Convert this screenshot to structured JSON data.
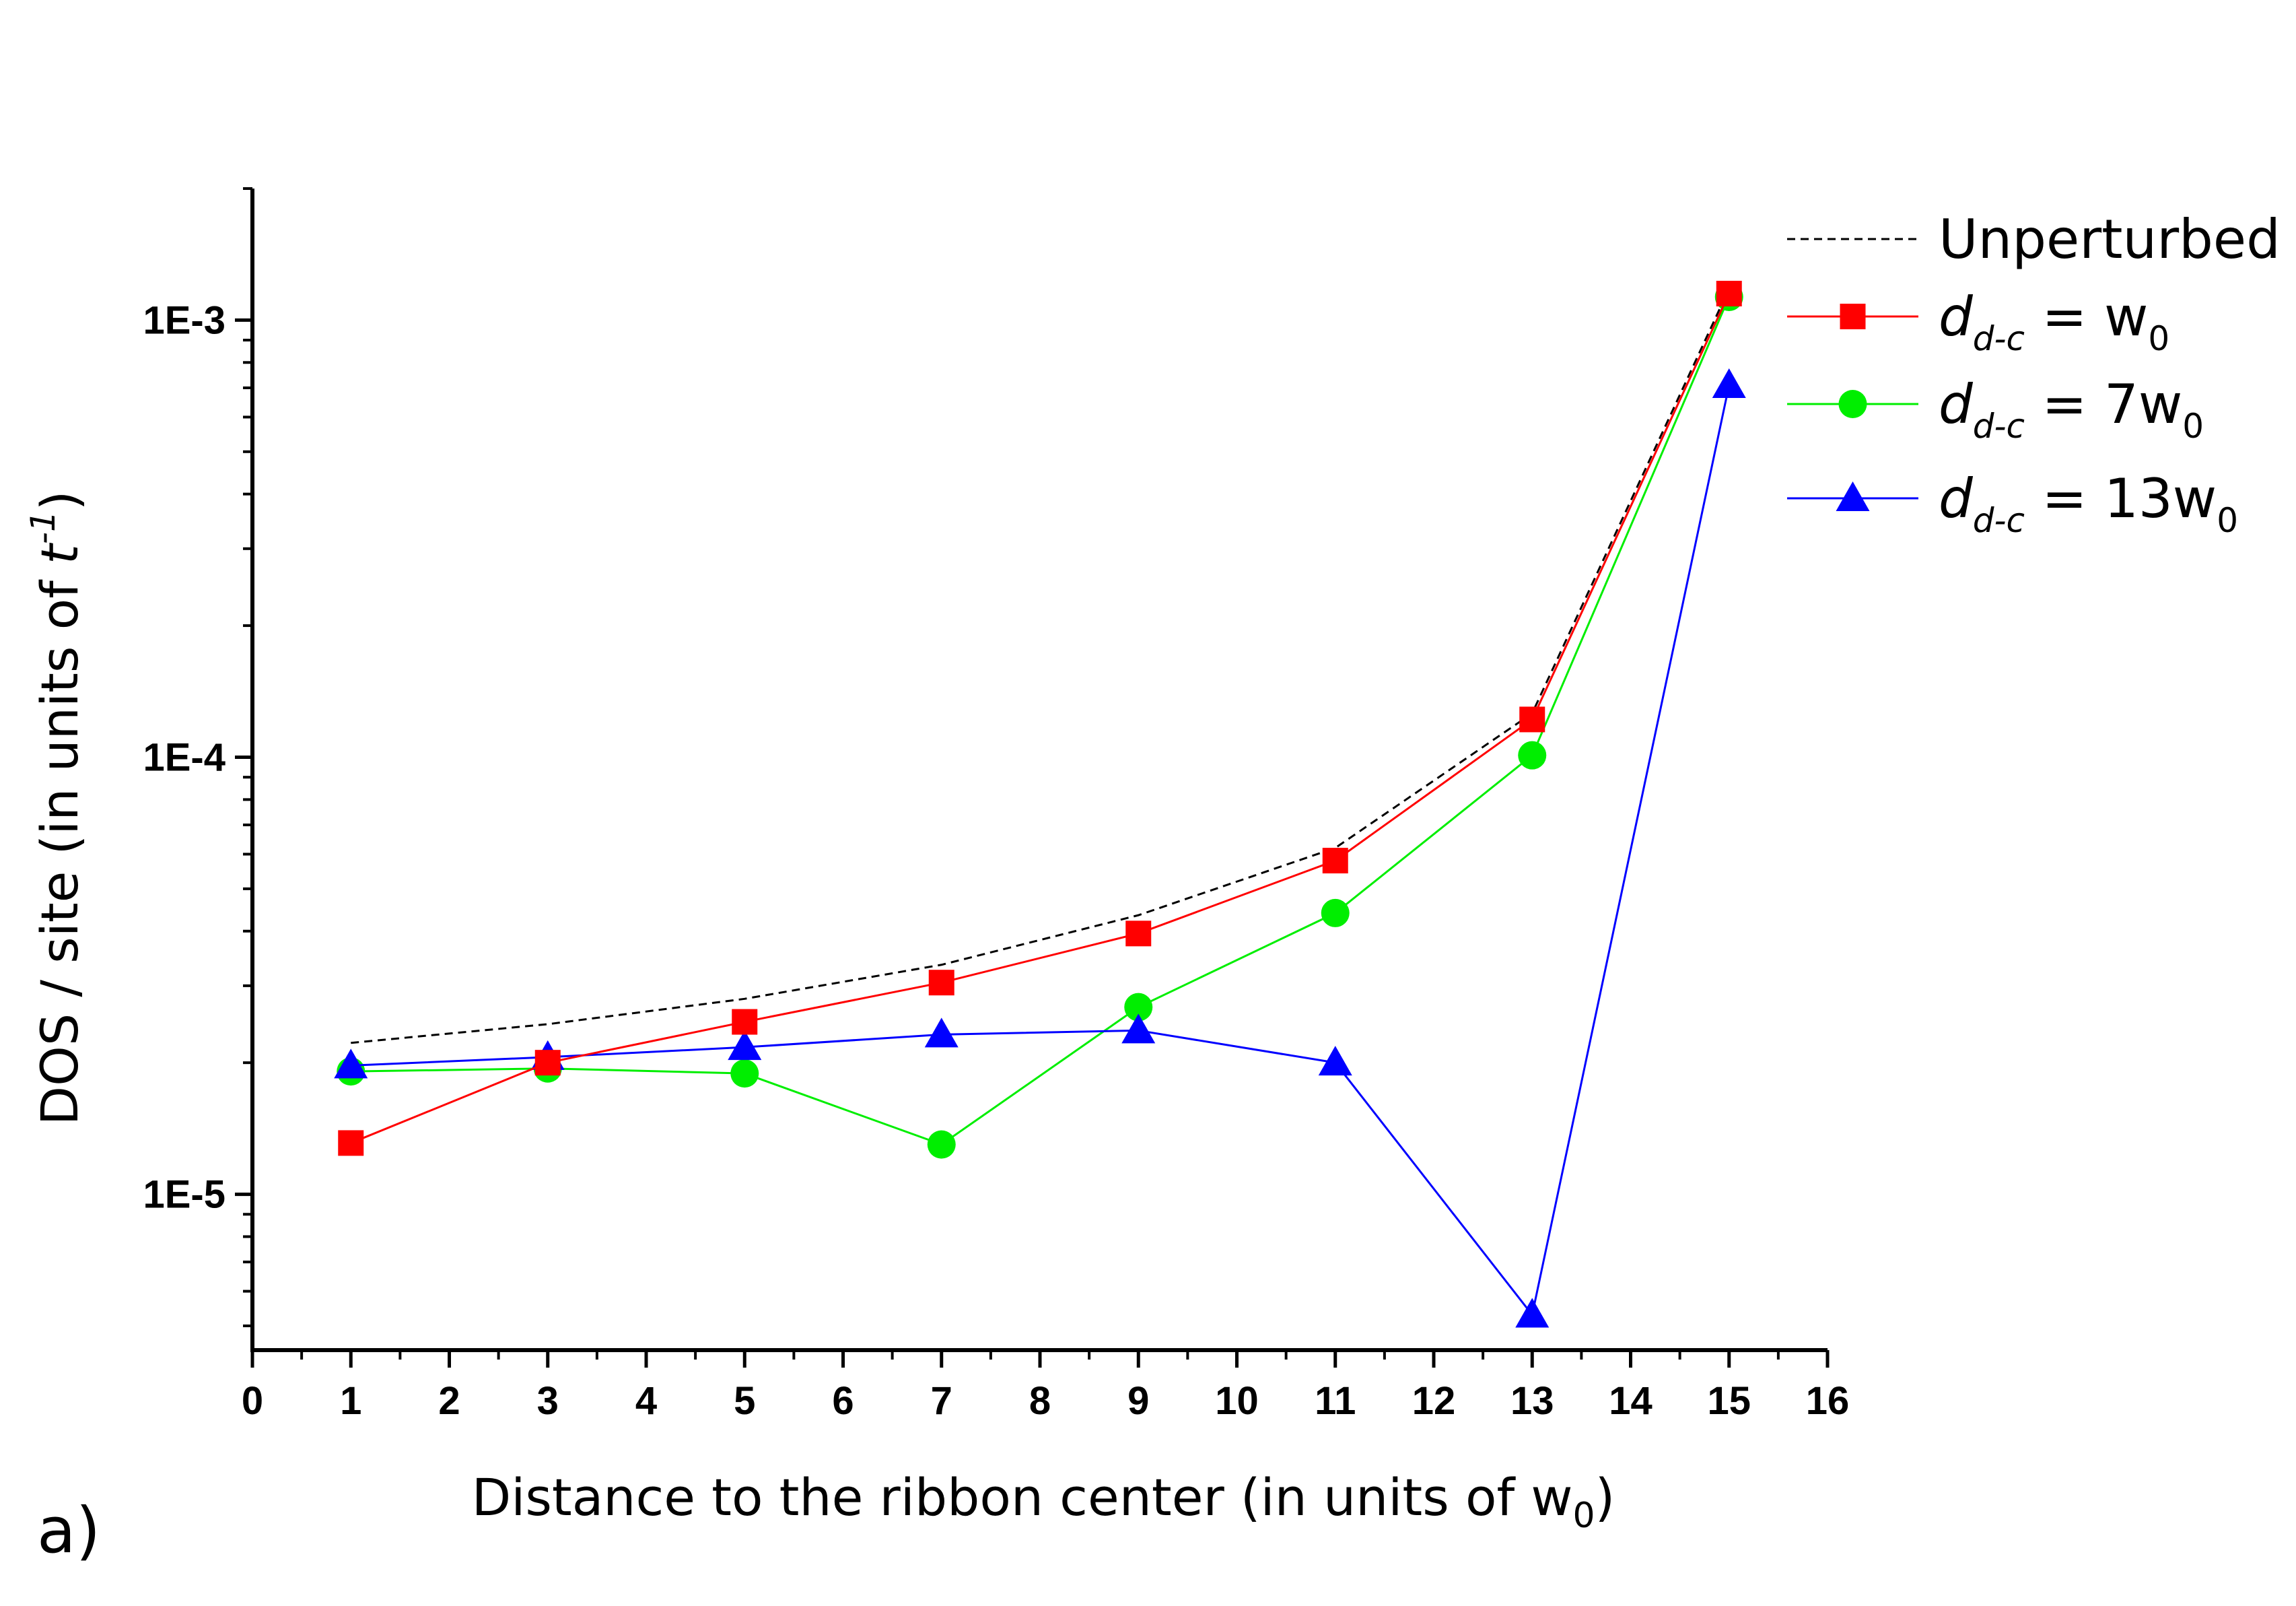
{
  "chart_data": {
    "type": "line",
    "panel_label": "a)",
    "xlabel": {
      "main": "Distance to the ribbon center (in units of w",
      "sub": "0",
      "end": ")"
    },
    "ylabel": {
      "main": "DOS / site  (in units of ",
      "var": "t",
      "sup": "-1",
      "end": ")"
    },
    "x_scale": "linear",
    "y_scale": "log",
    "xlim": [
      0,
      16
    ],
    "ylim": [
      4.4e-06,
      0.002
    ],
    "x_ticks": [
      "0",
      "1",
      "2",
      "3",
      "4",
      "5",
      "6",
      "7",
      "8",
      "9",
      "10",
      "11",
      "12",
      "13",
      "14",
      "15",
      "16"
    ],
    "y_ticks": [
      {
        "value": 1e-05,
        "label": "1E-5"
      },
      {
        "value": 0.0001,
        "label": "1E-4"
      },
      {
        "value": 0.001,
        "label": "1E-3"
      }
    ],
    "grid": false,
    "legend_position": "top-right",
    "x": [
      1,
      3,
      5,
      7,
      9,
      11,
      13,
      15
    ],
    "series": [
      {
        "key": "unperturbed",
        "legend": {
          "text": "Unperturbed"
        },
        "color": "#000000",
        "dash": "dashed",
        "marker": "none",
        "values": [
          2.22e-05,
          2.45e-05,
          2.8e-05,
          3.35e-05,
          4.35e-05,
          6.2e-05,
          0.000126,
          0.00118
        ]
      },
      {
        "key": "d7",
        "legend": {
          "var": "d",
          "sub": "d-c",
          "eq": " =  ",
          "val": "7w",
          "valsub": "0"
        },
        "color": "#00ee00",
        "dash": "solid",
        "marker": "circle",
        "values": [
          1.91e-05,
          1.94e-05,
          1.89e-05,
          1.3e-05,
          2.68e-05,
          4.4e-05,
          0.000101,
          0.00113
        ]
      },
      {
        "key": "d13",
        "legend": {
          "var": "d",
          "sub": "d-c",
          "eq": " = ",
          "val": "13w",
          "valsub": "0"
        },
        "color": "#0000ff",
        "dash": "solid",
        "marker": "triangle",
        "values": [
          1.97e-05,
          2.06e-05,
          2.17e-05,
          2.32e-05,
          2.37e-05,
          2e-05,
          5.3e-06,
          0.00071
        ]
      },
      {
        "key": "d1",
        "legend": {
          "var": "d",
          "sub": "d-c",
          "eq": " =    ",
          "val": "w",
          "valsub": "0"
        },
        "color": "#ff0000",
        "dash": "solid",
        "marker": "square",
        "values": [
          1.31e-05,
          2e-05,
          2.48e-05,
          3.05e-05,
          3.95e-05,
          5.8e-05,
          0.000122,
          0.00115
        ]
      }
    ],
    "legend_order": [
      "unperturbed",
      "d1",
      "d7",
      "d13"
    ]
  }
}
